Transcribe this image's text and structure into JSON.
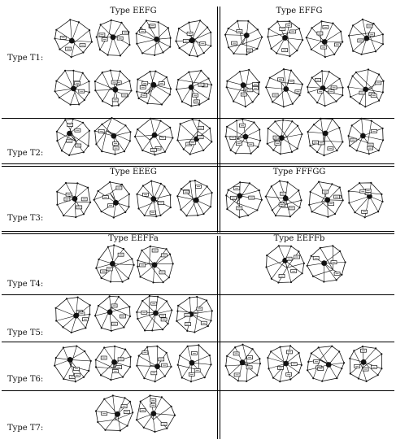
{
  "figure": {
    "row_labels": {
      "t1": "Type T1:",
      "t2": "Type T2:",
      "t3": "Type T3:",
      "t4": "Type T4:",
      "t5": "Type T5:",
      "t6": "Type T6:",
      "t7": "Type T7:"
    },
    "section_headers": {
      "eefg": "Type EEFG",
      "effg": "Type EFFG",
      "eeeg": "Type EEEG",
      "fffgg": "Type FFFGG",
      "eeffa": "Type EEFFa",
      "eeffb": "Type EEFFb"
    },
    "colors": {
      "ink": "#111111",
      "background": "#ffffff"
    }
  }
}
